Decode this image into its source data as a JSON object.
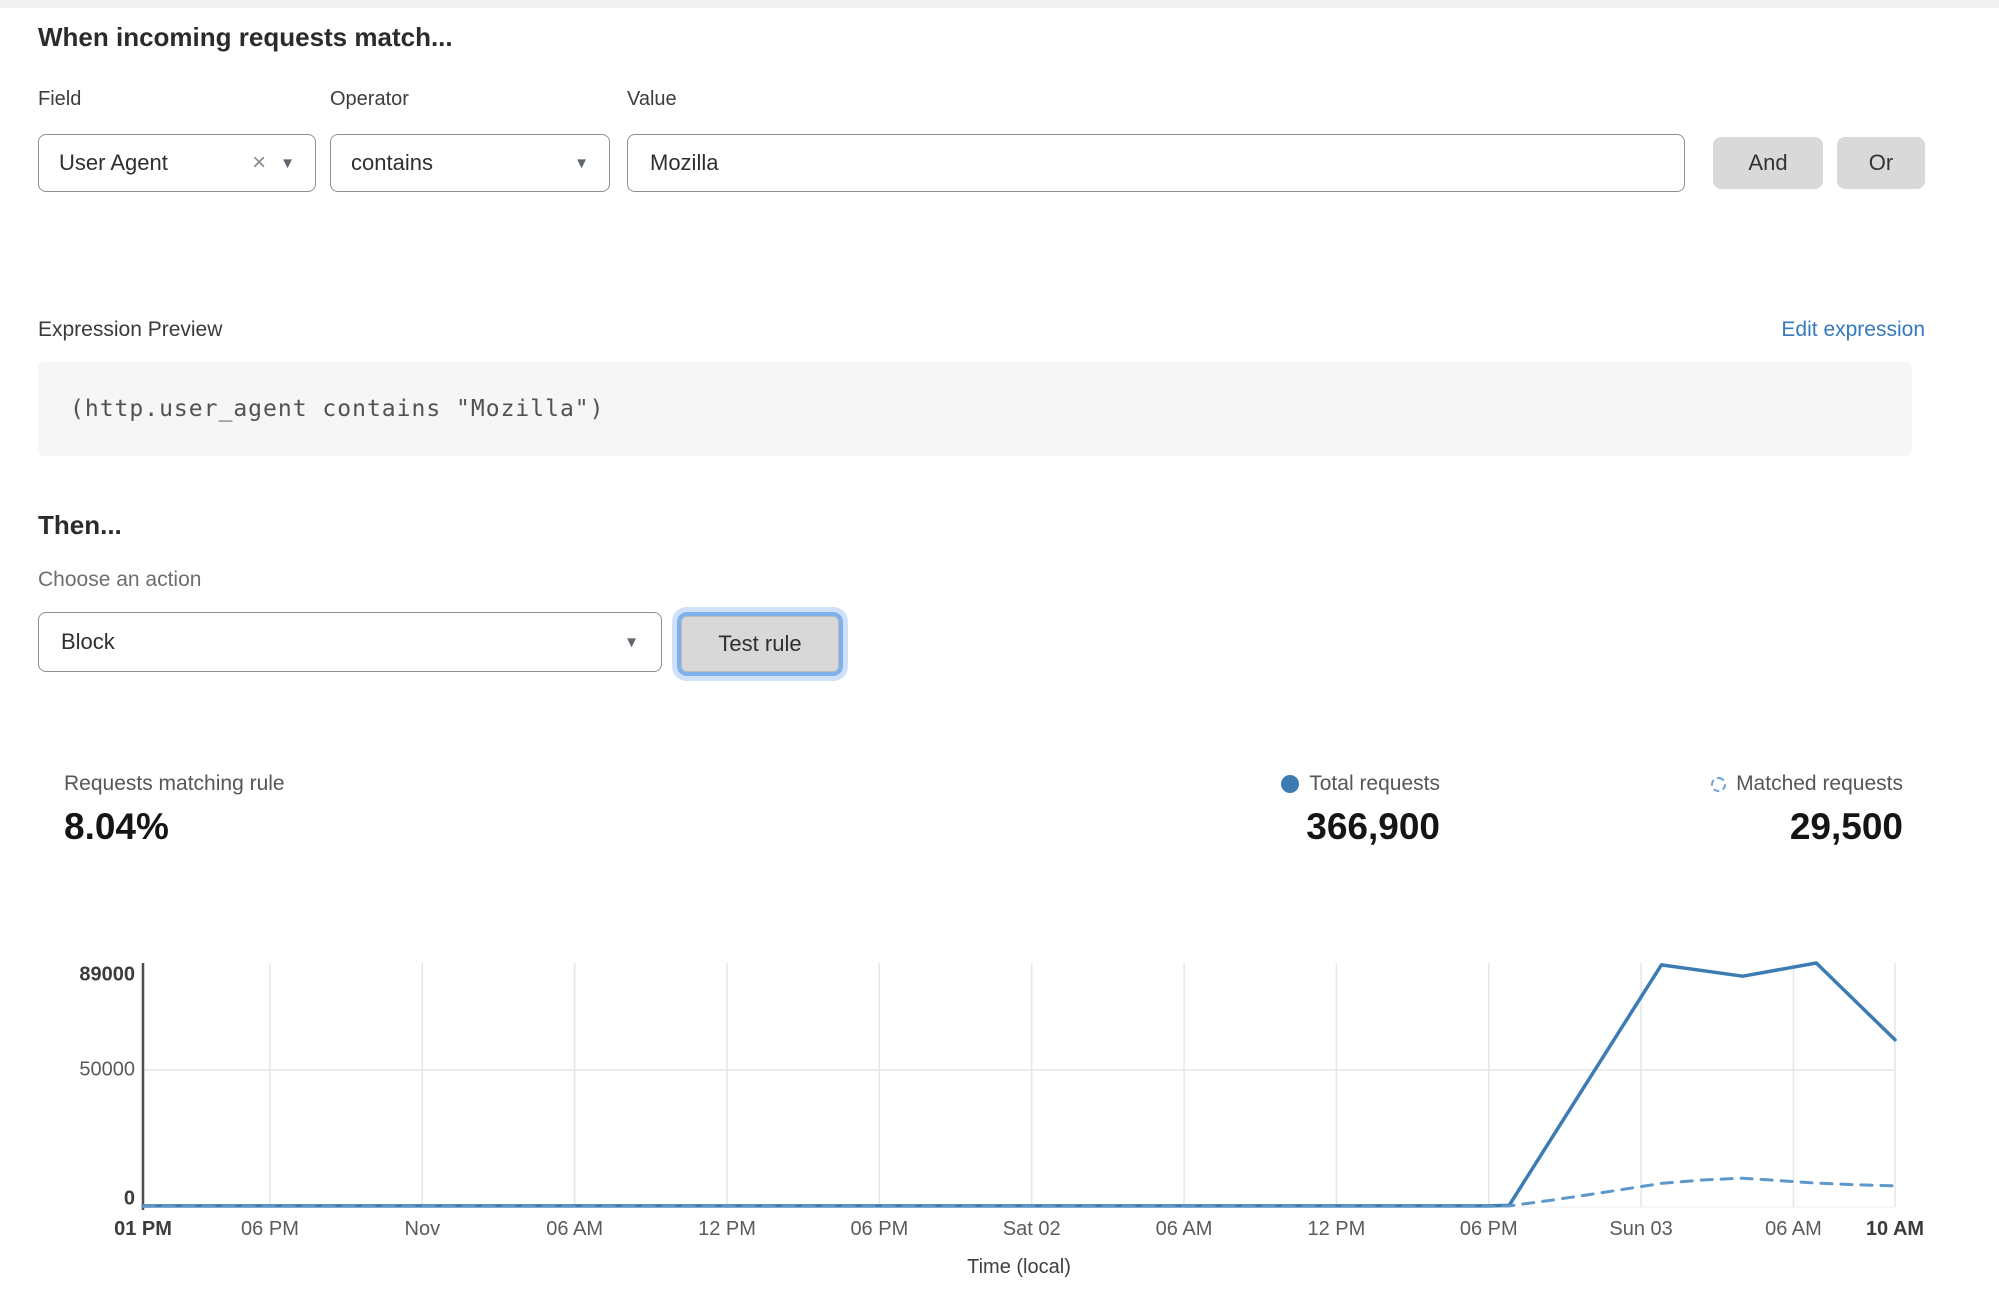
{
  "headings": {
    "match": "When incoming requests match...",
    "then": "Then..."
  },
  "rule_builder": {
    "field": {
      "label": "Field",
      "value": "User Agent",
      "clear_icon": "×",
      "caret_icon": "▼"
    },
    "operator": {
      "label": "Operator",
      "value": "contains",
      "caret_icon": "▼"
    },
    "value": {
      "label": "Value",
      "value": "Mozilla"
    },
    "and_button": "And",
    "or_button": "Or"
  },
  "expression": {
    "label": "Expression Preview",
    "edit_link": "Edit expression",
    "code": "(http.user_agent contains \"Mozilla\")"
  },
  "action": {
    "choose_label": "Choose an action",
    "selected": "Block",
    "caret_icon": "▼",
    "test_button": "Test rule"
  },
  "stats": {
    "matching": {
      "label": "Requests matching rule",
      "value": "8.04%"
    },
    "total": {
      "label": "Total requests",
      "value": "366,900",
      "icon": "solid-dot",
      "color": "#3d7cb3"
    },
    "matched": {
      "label": "Matched requests",
      "value": "29,500",
      "icon": "dashed-circle",
      "color": "#6aa3d8"
    }
  },
  "chart_data": {
    "type": "line",
    "title": "",
    "xlabel": "Time (local)",
    "ylabel": "",
    "x_unit": "hours since first tick (01 PM)",
    "x_range": [
      0,
      69
    ],
    "ylim": [
      0,
      89000
    ],
    "grid": "vertical at every x tick, horizontal at 50000",
    "legend_position": "top-right stats row",
    "y_ticks": [
      {
        "value": 0,
        "label": "0",
        "bold": true
      },
      {
        "value": 50000,
        "label": "50000",
        "bold": false
      },
      {
        "value": 89000,
        "label": "89000",
        "bold": true
      }
    ],
    "x_ticks": [
      {
        "hour": 0,
        "label": "01 PM",
        "bold": true
      },
      {
        "hour": 5,
        "label": "06 PM",
        "bold": false
      },
      {
        "hour": 11,
        "label": "Nov",
        "bold": false
      },
      {
        "hour": 17,
        "label": "06 AM",
        "bold": false
      },
      {
        "hour": 23,
        "label": "12 PM",
        "bold": false
      },
      {
        "hour": 29,
        "label": "06 PM",
        "bold": false
      },
      {
        "hour": 35,
        "label": "Sat 02",
        "bold": false
      },
      {
        "hour": 41,
        "label": "06 AM",
        "bold": false
      },
      {
        "hour": 47,
        "label": "12 PM",
        "bold": false
      },
      {
        "hour": 53,
        "label": "06 PM",
        "bold": false
      },
      {
        "hour": 59,
        "label": "Sun 03",
        "bold": false
      },
      {
        "hour": 65,
        "label": "06 AM",
        "bold": false
      },
      {
        "hour": 69,
        "label": "10 AM",
        "bold": true
      }
    ],
    "series": [
      {
        "name": "Total requests",
        "style": "solid",
        "color": "#3d7bb3",
        "points": [
          [
            0,
            400
          ],
          [
            5,
            400
          ],
          [
            11,
            400
          ],
          [
            17,
            400
          ],
          [
            23,
            400
          ],
          [
            29,
            400
          ],
          [
            35,
            400
          ],
          [
            41,
            400
          ],
          [
            47,
            400
          ],
          [
            53,
            400
          ],
          [
            53.8,
            600
          ],
          [
            59.8,
            88300
          ],
          [
            63,
            84200
          ],
          [
            65.9,
            89000
          ],
          [
            69,
            61000
          ]
        ]
      },
      {
        "name": "Matched requests",
        "style": "dashed",
        "color": "#5e97c9",
        "points": [
          [
            0,
            250
          ],
          [
            5,
            250
          ],
          [
            11,
            250
          ],
          [
            17,
            250
          ],
          [
            23,
            250
          ],
          [
            29,
            250
          ],
          [
            35,
            250
          ],
          [
            41,
            250
          ],
          [
            47,
            250
          ],
          [
            53,
            250
          ],
          [
            53.8,
            400
          ],
          [
            55.5,
            2500
          ],
          [
            57.5,
            5300
          ],
          [
            59.8,
            8600
          ],
          [
            61.5,
            9900
          ],
          [
            63,
            10500
          ],
          [
            64.5,
            9600
          ],
          [
            65.9,
            8700
          ],
          [
            67.5,
            8100
          ],
          [
            69,
            7700
          ]
        ]
      }
    ]
  }
}
